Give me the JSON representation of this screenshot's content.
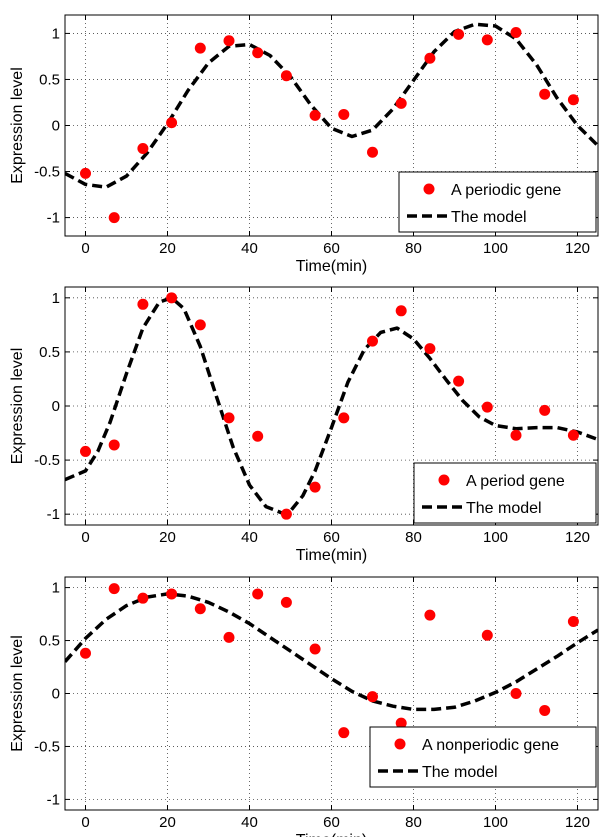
{
  "chart_data": [
    {
      "type": "scatter",
      "title": "",
      "xlabel": "Time(min)",
      "ylabel": "Expression level",
      "xlim": [
        -5,
        125
      ],
      "ylim": [
        -1.2,
        1.2
      ],
      "xticks": [
        0,
        20,
        40,
        60,
        80,
        100,
        120
      ],
      "yticks": [
        -1,
        -0.5,
        0,
        0.5,
        1
      ],
      "ytick_labels": [
        "-1",
        "-0.5",
        "0",
        "0.5",
        "1"
      ],
      "grid": true,
      "legend_position": "bottom-right",
      "series": [
        {
          "name": "A periodic gene",
          "kind": "points",
          "color": "#ff0000",
          "x": [
            0,
            7,
            14,
            21,
            28,
            35,
            42,
            49,
            56,
            63,
            70,
            77,
            84,
            91,
            98,
            105,
            112,
            119
          ],
          "y": [
            -0.52,
            -1.0,
            -0.25,
            0.03,
            0.84,
            0.92,
            0.79,
            0.54,
            0.11,
            0.12,
            -0.29,
            0.24,
            0.73,
            0.99,
            0.93,
            1.01,
            0.34,
            0.28
          ]
        },
        {
          "name": "The model",
          "kind": "dashed-line",
          "color": "#000000",
          "x": [
            -5,
            0,
            5,
            10,
            15,
            20,
            25,
            30,
            35,
            40,
            45,
            50,
            55,
            60,
            65,
            70,
            75,
            80,
            85,
            90,
            95,
            100,
            105,
            110,
            115,
            120,
            125
          ],
          "y": [
            -0.52,
            -0.64,
            -0.67,
            -0.55,
            -0.3,
            0.02,
            0.38,
            0.68,
            0.86,
            0.88,
            0.76,
            0.53,
            0.22,
            -0.03,
            -0.12,
            -0.05,
            0.18,
            0.49,
            0.8,
            1.02,
            1.1,
            1.08,
            0.94,
            0.66,
            0.3,
            0.0,
            -0.22
          ]
        }
      ]
    },
    {
      "type": "scatter",
      "title": "",
      "xlabel": "Time(min)",
      "ylabel": "Expression level",
      "xlim": [
        -5,
        125
      ],
      "ylim": [
        -1.1,
        1.1
      ],
      "xticks": [
        0,
        20,
        40,
        60,
        80,
        100,
        120
      ],
      "yticks": [
        -1,
        -0.5,
        0,
        0.5,
        1
      ],
      "ytick_labels": [
        "-1",
        "-0.5",
        "0",
        "0.5",
        "1"
      ],
      "grid": true,
      "legend_position": "bottom-right",
      "series": [
        {
          "name": "A period gene",
          "kind": "points",
          "color": "#ff0000",
          "x": [
            0,
            7,
            14,
            21,
            28,
            35,
            42,
            49,
            56,
            63,
            70,
            77,
            84,
            91,
            98,
            105,
            112,
            119
          ],
          "y": [
            -0.42,
            -0.36,
            0.94,
            1.0,
            0.75,
            -0.11,
            -0.28,
            -1.0,
            -0.75,
            -0.11,
            0.6,
            0.88,
            0.53,
            0.23,
            -0.01,
            -0.27,
            -0.04,
            -0.27
          ]
        },
        {
          "name": "The model",
          "kind": "dashed-line",
          "color": "#000000",
          "x": [
            -5,
            0,
            3,
            6,
            10,
            14,
            18,
            21,
            24,
            28,
            32,
            36,
            40,
            44,
            48,
            50,
            53,
            56,
            60,
            64,
            68,
            72,
            76,
            80,
            84,
            88,
            92,
            96,
            100,
            105,
            110,
            115,
            120,
            125
          ],
          "y": [
            -0.68,
            -0.6,
            -0.42,
            -0.15,
            0.3,
            0.72,
            0.96,
            1.0,
            0.9,
            0.55,
            0.08,
            -0.38,
            -0.73,
            -0.93,
            -0.99,
            -0.97,
            -0.83,
            -0.6,
            -0.2,
            0.22,
            0.52,
            0.68,
            0.72,
            0.62,
            0.44,
            0.24,
            0.05,
            -0.1,
            -0.18,
            -0.21,
            -0.2,
            -0.2,
            -0.24,
            -0.31
          ]
        }
      ]
    },
    {
      "type": "scatter",
      "title": "",
      "xlabel": "Time(min)",
      "ylabel": "Expression level",
      "xlim": [
        -5,
        125
      ],
      "ylim": [
        -1.1,
        1.1
      ],
      "xticks": [
        0,
        20,
        40,
        60,
        80,
        100,
        120
      ],
      "yticks": [
        -1,
        -0.5,
        0,
        0.5,
        1
      ],
      "ytick_labels": [
        "-1",
        "-0.5",
        "0",
        "0.5",
        "1"
      ],
      "grid": true,
      "legend_position": "bottom-right",
      "series": [
        {
          "name": "A nonperiodic gene",
          "kind": "points",
          "color": "#ff0000",
          "x": [
            0,
            7,
            14,
            21,
            28,
            35,
            42,
            49,
            56,
            63,
            70,
            77,
            84,
            98,
            105,
            112,
            119
          ],
          "y": [
            0.38,
            0.99,
            0.9,
            0.94,
            0.8,
            0.53,
            0.94,
            0.86,
            0.42,
            -0.37,
            -0.03,
            -0.28,
            0.74,
            0.55,
            0.0,
            -0.16,
            0.68
          ]
        },
        {
          "name": "The model",
          "kind": "dashed-line",
          "color": "#000000",
          "x": [
            -5,
            0,
            5,
            10,
            15,
            20,
            25,
            30,
            35,
            40,
            45,
            50,
            55,
            60,
            65,
            70,
            75,
            80,
            85,
            90,
            95,
            100,
            105,
            110,
            115,
            120,
            125
          ],
          "y": [
            0.3,
            0.52,
            0.7,
            0.83,
            0.91,
            0.94,
            0.92,
            0.86,
            0.77,
            0.66,
            0.53,
            0.4,
            0.27,
            0.14,
            0.02,
            -0.07,
            -0.12,
            -0.15,
            -0.15,
            -0.13,
            -0.07,
            0.01,
            0.11,
            0.23,
            0.35,
            0.48,
            0.6
          ]
        }
      ]
    }
  ]
}
